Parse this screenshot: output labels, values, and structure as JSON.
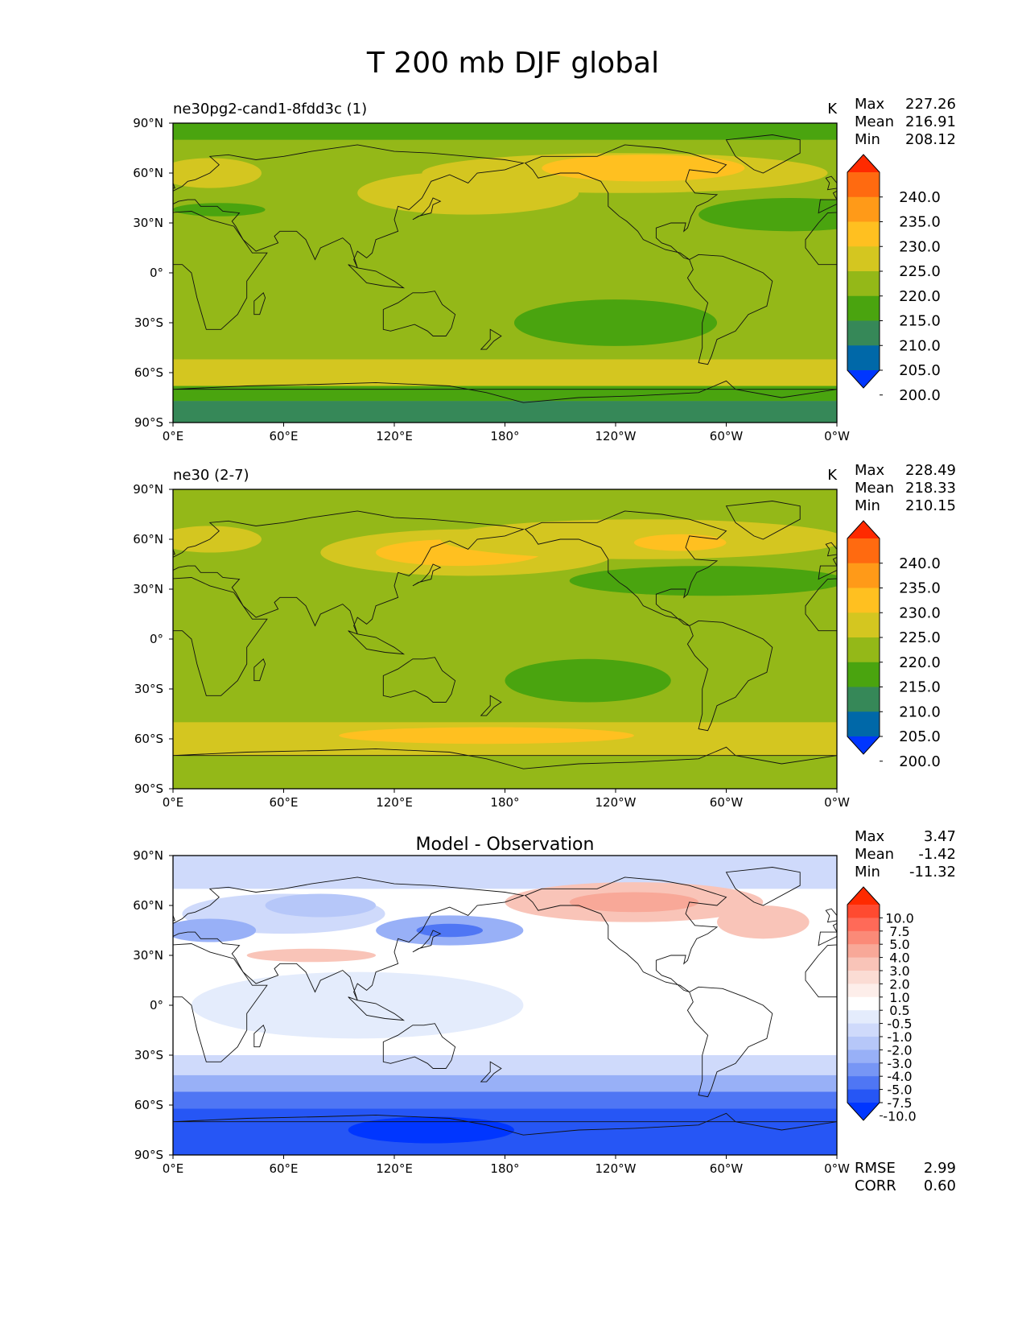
{
  "figure_title": "T 200 mb DJF global",
  "chart_data": [
    {
      "type": "heatmap",
      "title": "ne30pg2-cand1-8fdd3c (1)",
      "units": "K",
      "stats": {
        "max_label": "Max",
        "max": "227.26",
        "mean_label": "Mean",
        "mean": "216.91",
        "min_label": "Min",
        "min": "208.12"
      },
      "x_ticks": [
        "0°E",
        "60°E",
        "120°E",
        "180°",
        "120°W",
        "60°W",
        "0°W"
      ],
      "y_ticks": [
        "90°N",
        "60°N",
        "30°N",
        "0°",
        "30°S",
        "60°S",
        "90°S"
      ],
      "levels": [
        "240.0",
        "235.0",
        "230.0",
        "225.0",
        "220.0",
        "215.0",
        "210.0",
        "205.0",
        "200.0"
      ],
      "colors": [
        "#ff2a00",
        "#ff6a10",
        "#ff9a18",
        "#ffc020",
        "#d4c620",
        "#94b818",
        "#4aa40f",
        "#368858",
        "#0068a8",
        "#0036ff"
      ],
      "background_level_color": "#94b818",
      "regions": [
        {
          "band": "north-high",
          "color": "#4aa40f"
        },
        {
          "band": "north-mid",
          "color": "#d4c620"
        },
        {
          "band": "north-jet",
          "color": "#ffc020"
        },
        {
          "band": "south-subtropic",
          "color": "#4aa40f"
        },
        {
          "band": "south-polar",
          "color": "#368858"
        }
      ]
    },
    {
      "type": "heatmap",
      "title": "ne30 (2-7)",
      "units": "K",
      "stats": {
        "max_label": "Max",
        "max": "228.49",
        "mean_label": "Mean",
        "mean": "218.33",
        "min_label": "Min",
        "min": "210.15"
      },
      "x_ticks": [
        "0°E",
        "60°E",
        "120°E",
        "180°",
        "120°W",
        "60°W",
        "0°W"
      ],
      "y_ticks": [
        "90°N",
        "60°N",
        "30°N",
        "0°",
        "30°S",
        "60°S",
        "90°S"
      ],
      "levels": [
        "240.0",
        "235.0",
        "230.0",
        "225.0",
        "220.0",
        "215.0",
        "210.0",
        "205.0",
        "200.0"
      ],
      "colors": [
        "#ff2a00",
        "#ff6a10",
        "#ff9a18",
        "#ffc020",
        "#d4c620",
        "#94b818",
        "#4aa40f",
        "#368858",
        "#0068a8",
        "#0036ff"
      ],
      "background_level_color": "#94b818"
    },
    {
      "type": "heatmap",
      "title": "Model - Observation",
      "units": "",
      "stats": {
        "max_label": "Max",
        "max": "3.47",
        "mean_label": "Mean",
        "mean": "-1.42",
        "min_label": "Min",
        "min": "-11.32"
      },
      "x_ticks": [
        "0°E",
        "60°E",
        "120°E",
        "180°",
        "120°W",
        "60°W",
        "0°W"
      ],
      "y_ticks": [
        "90°N",
        "60°N",
        "30°N",
        "0°",
        "30°S",
        "60°S",
        "90°S"
      ],
      "levels": [
        "10.0",
        "7.5",
        "5.0",
        "4.0",
        "3.0",
        "2.0",
        "1.0",
        "0.5",
        "-0.5",
        "-1.0",
        "-2.0",
        "-3.0",
        "-4.0",
        "-5.0",
        "-7.5",
        "-10.0"
      ],
      "colors": [
        "#ff2a00",
        "#ff4a30",
        "#ff6a58",
        "#fb8a78",
        "#f8a898",
        "#f9c4b8",
        "#fbdcd4",
        "#fdeeea",
        "#ffffff",
        "#e4ecfc",
        "#cfdafb",
        "#b6c7f9",
        "#98b0f7",
        "#7796f5",
        "#4f76f4",
        "#2656f5",
        "#0036ff"
      ],
      "rmse_label": "RMSE",
      "rmse": "2.99",
      "corr_label": "CORR",
      "corr": "0.60"
    }
  ]
}
